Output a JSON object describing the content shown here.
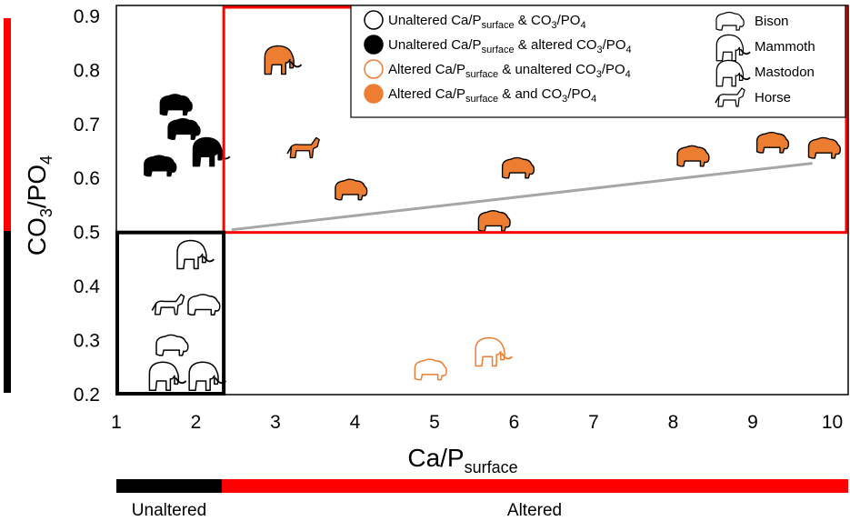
{
  "chart_data": {
    "type": "scatter",
    "xlabel_main": "Ca/P",
    "xlabel_sub": "surface",
    "ylabel_main": "CO",
    "ylabel_sub3": "3",
    "ylabel_mid": "/PO",
    "ylabel_sub4": "4",
    "xlim": [
      1,
      10.2
    ],
    "ylim": [
      0.2,
      0.92
    ],
    "x_ticks": [
      "1",
      "2",
      "3",
      "4",
      "5",
      "6",
      "7",
      "8",
      "9",
      "10"
    ],
    "y_ticks": [
      "0.2",
      "0.3",
      "0.4",
      "0.5",
      "0.6",
      "0.7",
      "0.8",
      "0.9"
    ],
    "thresholds": {
      "x": 2.35,
      "y": 0.5
    },
    "legend": {
      "categories": [
        {
          "key": "unaltered_both",
          "a": "Unaltered Ca/P",
          "sub": "surface",
          "b": " & CO",
          "sub3": "3",
          "c": "/PO",
          "sub4": "4",
          "fill": "#ffffff",
          "stroke": "#000000"
        },
        {
          "key": "unaltered_ca_altered_co3",
          "a": "Unaltered Ca/P",
          "sub": "surface",
          "b": " & altered CO",
          "sub3": "3",
          "c": "/PO",
          "sub4": "4",
          "fill": "#000000",
          "stroke": "#000000"
        },
        {
          "key": "altered_ca_unaltered_co3",
          "a": "Altered Ca/P",
          "sub": "surface",
          "b": " & unaltered CO",
          "sub3": "3",
          "c": "/PO",
          "sub4": "4",
          "fill": "#ffffff",
          "stroke": "#ed7d31"
        },
        {
          "key": "altered_both",
          "a": "Altered Ca/P",
          "sub": "surface",
          "b": " & and CO",
          "sub3": "3",
          "c": "/PO",
          "sub4": "4",
          "fill": "#ed7d31",
          "stroke": "#ed7d31"
        }
      ],
      "taxa": [
        "Bison",
        "Mammoth",
        "Mastodon",
        "Horse"
      ]
    },
    "trendline": {
      "x": [
        2.45,
        9.75
      ],
      "y": [
        0.505,
        0.628
      ],
      "color": "#a6a6a6"
    },
    "points": [
      {
        "taxon": "mammoth",
        "style": "altered_both",
        "x": 3.05,
        "y": 0.82
      },
      {
        "taxon": "horse",
        "style": "altered_both",
        "x": 3.35,
        "y": 0.655
      },
      {
        "taxon": "bison",
        "style": "altered_both",
        "x": 3.95,
        "y": 0.578
      },
      {
        "taxon": "bison",
        "style": "altered_both",
        "x": 5.75,
        "y": 0.52
      },
      {
        "taxon": "bison",
        "style": "altered_both",
        "x": 6.05,
        "y": 0.618
      },
      {
        "taxon": "bison",
        "style": "altered_both",
        "x": 8.25,
        "y": 0.64
      },
      {
        "taxon": "bison",
        "style": "altered_both",
        "x": 9.25,
        "y": 0.665
      },
      {
        "taxon": "bison",
        "style": "altered_both",
        "x": 9.9,
        "y": 0.655
      },
      {
        "taxon": "bison",
        "style": "unaltered_ca_altered_co3",
        "x": 1.75,
        "y": 0.735
      },
      {
        "taxon": "bison",
        "style": "unaltered_ca_altered_co3",
        "x": 1.85,
        "y": 0.69
      },
      {
        "taxon": "bison",
        "style": "unaltered_ca_altered_co3",
        "x": 1.55,
        "y": 0.622
      },
      {
        "taxon": "mammoth",
        "style": "unaltered_ca_altered_co3",
        "x": 2.15,
        "y": 0.65
      },
      {
        "taxon": "mammoth",
        "style": "unaltered_both",
        "x": 1.95,
        "y": 0.46
      },
      {
        "taxon": "horse",
        "style": "unaltered_both",
        "x": 1.65,
        "y": 0.365
      },
      {
        "taxon": "bison",
        "style": "unaltered_both",
        "x": 2.1,
        "y": 0.365
      },
      {
        "taxon": "bison",
        "style": "unaltered_both",
        "x": 1.7,
        "y": 0.29
      },
      {
        "taxon": "mammoth",
        "style": "unaltered_both",
        "x": 1.6,
        "y": 0.235
      },
      {
        "taxon": "mammoth",
        "style": "unaltered_both",
        "x": 2.1,
        "y": 0.235
      },
      {
        "taxon": "bison",
        "style": "altered_ca_unaltered_co3",
        "x": 4.95,
        "y": 0.245
      },
      {
        "taxon": "mammoth",
        "style": "altered_ca_unaltered_co3",
        "x": 5.7,
        "y": 0.28
      }
    ],
    "x_bar": {
      "left_label": "Unaltered",
      "right_label": "Altered"
    },
    "colors": {
      "red": "#ff0000",
      "black": "#000000",
      "orange": "#ed7d31",
      "gray": "#a6a6a6"
    }
  }
}
